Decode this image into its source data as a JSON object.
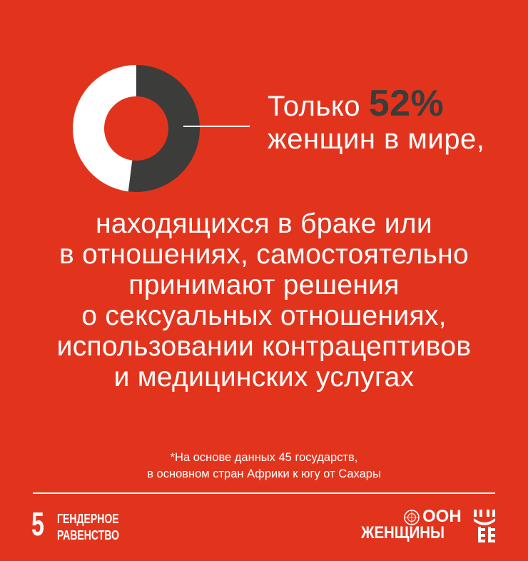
{
  "donut": {
    "value_percent": 52,
    "filled_color": "#3c3c3b",
    "remainder_color": "#ffffff",
    "background_color": "#e2341d"
  },
  "headline": {
    "prefix": "Только",
    "percent": "52%",
    "line2": "женщин в мире,"
  },
  "body_lines": [
    "находящихся в браке или",
    "в отношениях, самостоятельно",
    "принимают решения",
    "о сексуальных отношениях,",
    "использовании контрацептивов",
    "и медицинских услугах"
  ],
  "footnote": [
    "*На основе данных 45 государств,",
    "в основном стран Африки к югу от Сахары"
  ],
  "footer": {
    "sdg_number": "5",
    "sdg_label": [
      "ГЕНДЕРНОЕ",
      "РАВЕНСТВО"
    ],
    "logo_line1": "ООН",
    "logo_line2": "ЖЕНЩИНЫ"
  }
}
